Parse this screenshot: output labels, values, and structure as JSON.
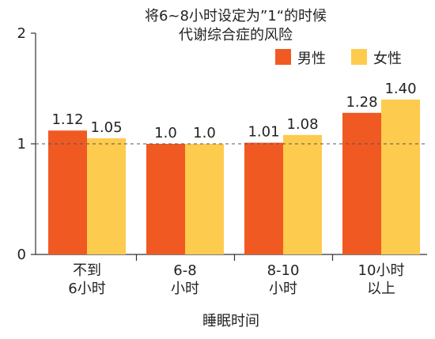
{
  "chart_data": {
    "type": "bar",
    "title_lines": [
      "将6~8小时设定为”1“的时候",
      "代谢综合症的风险"
    ],
    "xlabel": "睡眠时间",
    "ylabel": "",
    "ylim": [
      0,
      2
    ],
    "yticks": [
      "0",
      "1",
      "2"
    ],
    "reference_line": 1,
    "categories": [
      [
        "不到",
        "6小时"
      ],
      [
        "6-8",
        "小时"
      ],
      [
        "8-10",
        "小时"
      ],
      [
        "10小时",
        "以上"
      ]
    ],
    "series": [
      {
        "name": "男性",
        "color": "#F05A22",
        "values": [
          1.12,
          1.0,
          1.01,
          1.28
        ],
        "labels": [
          "1.12",
          "1.0",
          "1.01",
          "1.28"
        ]
      },
      {
        "name": "女性",
        "color": "#FDCB4E",
        "values": [
          1.05,
          1.0,
          1.08,
          1.4
        ],
        "labels": [
          "1.05",
          "1.0",
          "1.08",
          "1.40"
        ]
      }
    ],
    "legend_position": "top-right",
    "grid": false
  }
}
